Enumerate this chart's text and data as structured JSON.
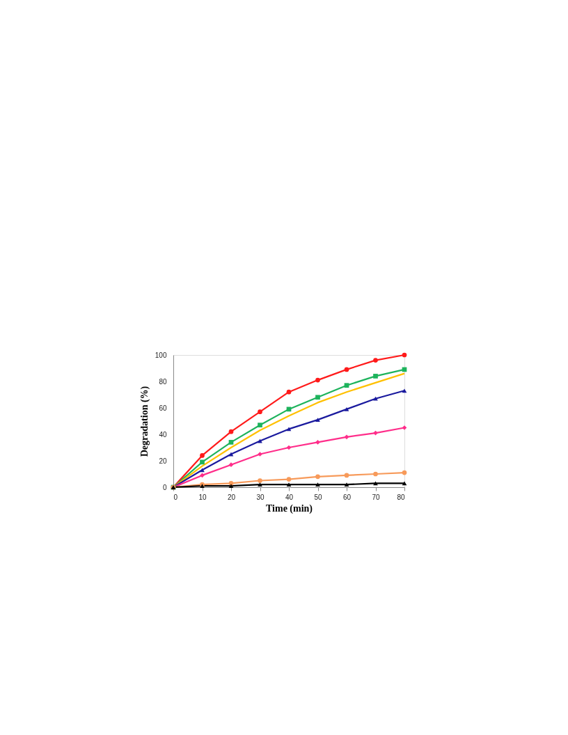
{
  "chart_data": {
    "type": "line",
    "xlabel": "Time (min)",
    "ylabel": "Degradation (%)",
    "x": [
      0,
      10,
      20,
      30,
      40,
      50,
      60,
      70,
      80
    ],
    "xlim": [
      0,
      80
    ],
    "xticks": [
      0,
      10,
      20,
      30,
      40,
      50,
      60,
      70,
      80
    ],
    "ylim": [
      0,
      100
    ],
    "yticks": [
      0,
      20,
      40,
      60,
      80,
      100
    ],
    "grid": false,
    "legend": false,
    "line_style": "solid",
    "series": [
      {
        "color": "#ff1a1a",
        "marker": "circle",
        "values": [
          0,
          24,
          42,
          57,
          72,
          81,
          89,
          96,
          100
        ]
      },
      {
        "color": "#1db35c",
        "marker": "square",
        "values": [
          0,
          19,
          34,
          47,
          59,
          68,
          77,
          84,
          89
        ]
      },
      {
        "color": "#ffc000",
        "marker": "none",
        "values": [
          0,
          16,
          30,
          43,
          54,
          64,
          72,
          79,
          86
        ]
      },
      {
        "color": "#1a1a9e",
        "marker": "triangle",
        "values": [
          0,
          13,
          25,
          35,
          44,
          51,
          59,
          67,
          73
        ]
      },
      {
        "color": "#ff2d8a",
        "marker": "diamond",
        "values": [
          0,
          9,
          17,
          25,
          30,
          34,
          38,
          41,
          45
        ]
      },
      {
        "color": "#f79a5a",
        "marker": "circle",
        "values": [
          0,
          2,
          3,
          5,
          6,
          8,
          9,
          10,
          11
        ]
      },
      {
        "color": "#000000",
        "marker": "triangle",
        "values": [
          0,
          1,
          1,
          2,
          2,
          2,
          2,
          3,
          3
        ]
      }
    ]
  }
}
